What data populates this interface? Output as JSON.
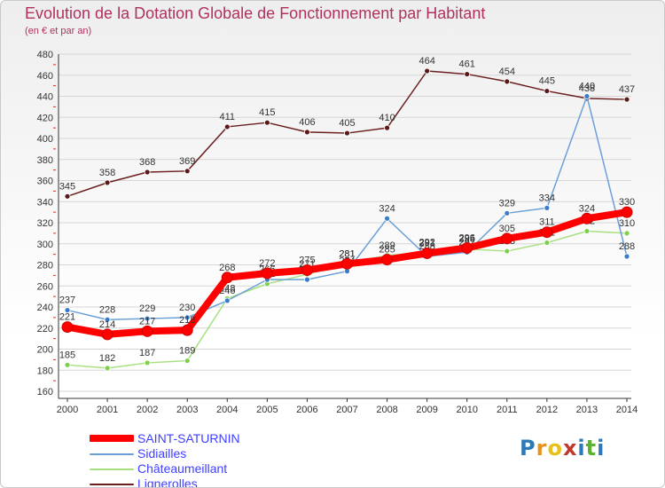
{
  "title": "Evolution de la Dotation Globale de Fonctionnement par Habitant",
  "subtitle": "(en € et par an)",
  "logo": {
    "text": "Proxiti",
    "letter_colors": [
      "#2e7ab8",
      "#e8941a",
      "#e8c01a",
      "#c0392b",
      "#2e7ab8",
      "#5bb130",
      "#2e7ab8"
    ]
  },
  "chart_data": {
    "type": "line",
    "title": "Evolution de la Dotation Globale de Fonctionnement par Habitant",
    "subtitle": "(en € et par an)",
    "xlabel": "",
    "ylabel": "",
    "ylim": [
      160,
      480
    ],
    "y_ticks": [
      160,
      180,
      200,
      220,
      240,
      260,
      280,
      300,
      320,
      340,
      360,
      380,
      400,
      420,
      440,
      460,
      480
    ],
    "x": [
      2000,
      2001,
      2002,
      2003,
      2004,
      2005,
      2006,
      2007,
      2008,
      2009,
      2010,
      2011,
      2012,
      2013,
      2014
    ],
    "legend_position": "bottom-left",
    "grid": "horizontal",
    "series": [
      {
        "name": "Lignerolles",
        "color": "#6b1f1f",
        "marker": "#5a1818",
        "values": [
          345,
          358,
          368,
          369,
          411,
          415,
          406,
          405,
          410,
          464,
          461,
          454,
          445,
          438,
          437
        ],
        "labels": [
          "345",
          "358",
          "368",
          "369",
          "411",
          "415",
          "406",
          "405",
          "410",
          "464",
          "461",
          "454",
          "445",
          "438",
          "437"
        ]
      },
      {
        "name": "Châteaumeillant",
        "color": "#a8e080",
        "marker": "#7ed04a",
        "values": [
          185,
          182,
          187,
          189,
          248,
          262,
          271,
          281,
          289,
          292,
          295,
          293,
          301,
          312,
          310
        ],
        "labels": [
          "185",
          "182",
          "187",
          "189",
          "248",
          "262",
          "271",
          "281",
          "289",
          "292",
          "295",
          "293",
          "301",
          "312",
          "310"
        ]
      },
      {
        "name": "Sidiailles",
        "color": "#6aa0d8",
        "marker": "#3a7cc8",
        "values": [
          237,
          228,
          229,
          230,
          246,
          266,
          266,
          274,
          324,
          288,
          292,
          329,
          334,
          440,
          288
        ],
        "labels": [
          "237",
          "228",
          "229",
          "230",
          "246",
          "266",
          "266",
          "274",
          "324",
          "288",
          "292",
          "329",
          "334",
          "440",
          "288"
        ]
      },
      {
        "name": "SAINT-SATURNIN",
        "color": "#ff0000",
        "marker": "#ff0000",
        "values": [
          221,
          214,
          217,
          218,
          268,
          272,
          275,
          281,
          285,
          291,
          296,
          305,
          311,
          324,
          330
        ],
        "labels": [
          "221",
          "214",
          "217",
          "218",
          "268",
          "272",
          "275",
          "281",
          "285",
          "291",
          "296",
          "305",
          "311",
          "324",
          "330"
        ]
      }
    ],
    "legend": [
      {
        "name": "SAINT-SATURNIN",
        "color": "#ff0000"
      },
      {
        "name": "Sidiailles",
        "color": "#6aa0d8"
      },
      {
        "name": "Châteaumeillant",
        "color": "#a8e080"
      },
      {
        "name": "Lignerolles",
        "color": "#6b1f1f"
      }
    ]
  }
}
